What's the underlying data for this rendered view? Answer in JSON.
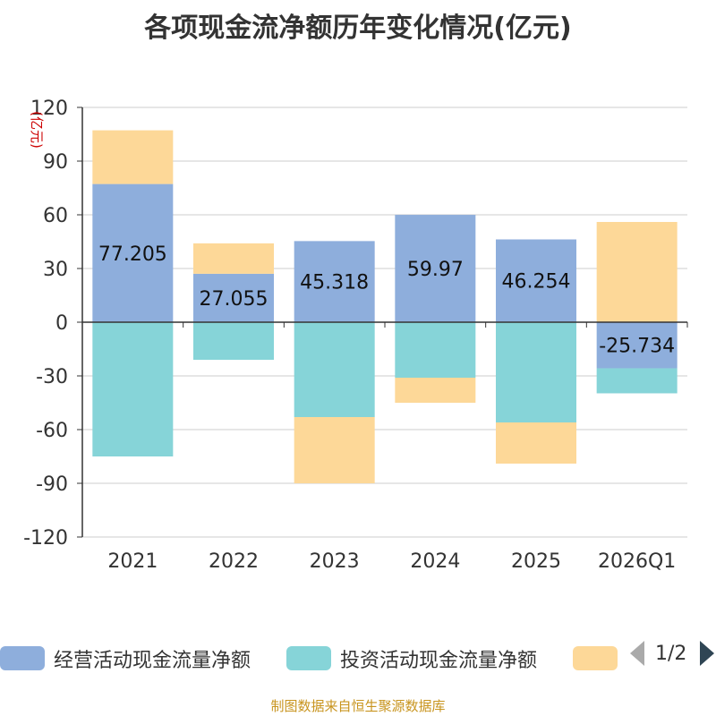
{
  "chart_data": {
    "type": "bar",
    "stacked": true,
    "title": "各项现金流净额历年变化情况(亿元)",
    "ylabel": "(亿元)",
    "ylim": [
      -120,
      120
    ],
    "yticks": [
      120,
      90,
      60,
      30,
      0,
      -30,
      -60,
      -90,
      -120
    ],
    "categories": [
      "2021",
      "2022",
      "2023",
      "2024",
      "2025",
      "2026Q1"
    ],
    "series": [
      {
        "name": "经营活动现金流量净额",
        "color": "#8eaedc",
        "values": [
          77.205,
          27.055,
          45.318,
          59.97,
          46.254,
          -25.734
        ],
        "labels": [
          "77.205",
          "27.055",
          "45.318",
          "59.97",
          "46.254",
          "-25.734"
        ]
      },
      {
        "name": "投资活动现金流量净额",
        "color": "#86d4d8",
        "values": [
          -75,
          -21,
          -53,
          -31,
          -56,
          -14
        ]
      },
      {
        "name": "",
        "color": "#fdd898",
        "values": [
          30,
          17,
          -37,
          -14,
          -23,
          56
        ]
      }
    ],
    "legend_position": "bottom",
    "grid": true
  },
  "legend": {
    "page": "1/2"
  },
  "source_note": "制图数据来自恒生聚源数据库"
}
